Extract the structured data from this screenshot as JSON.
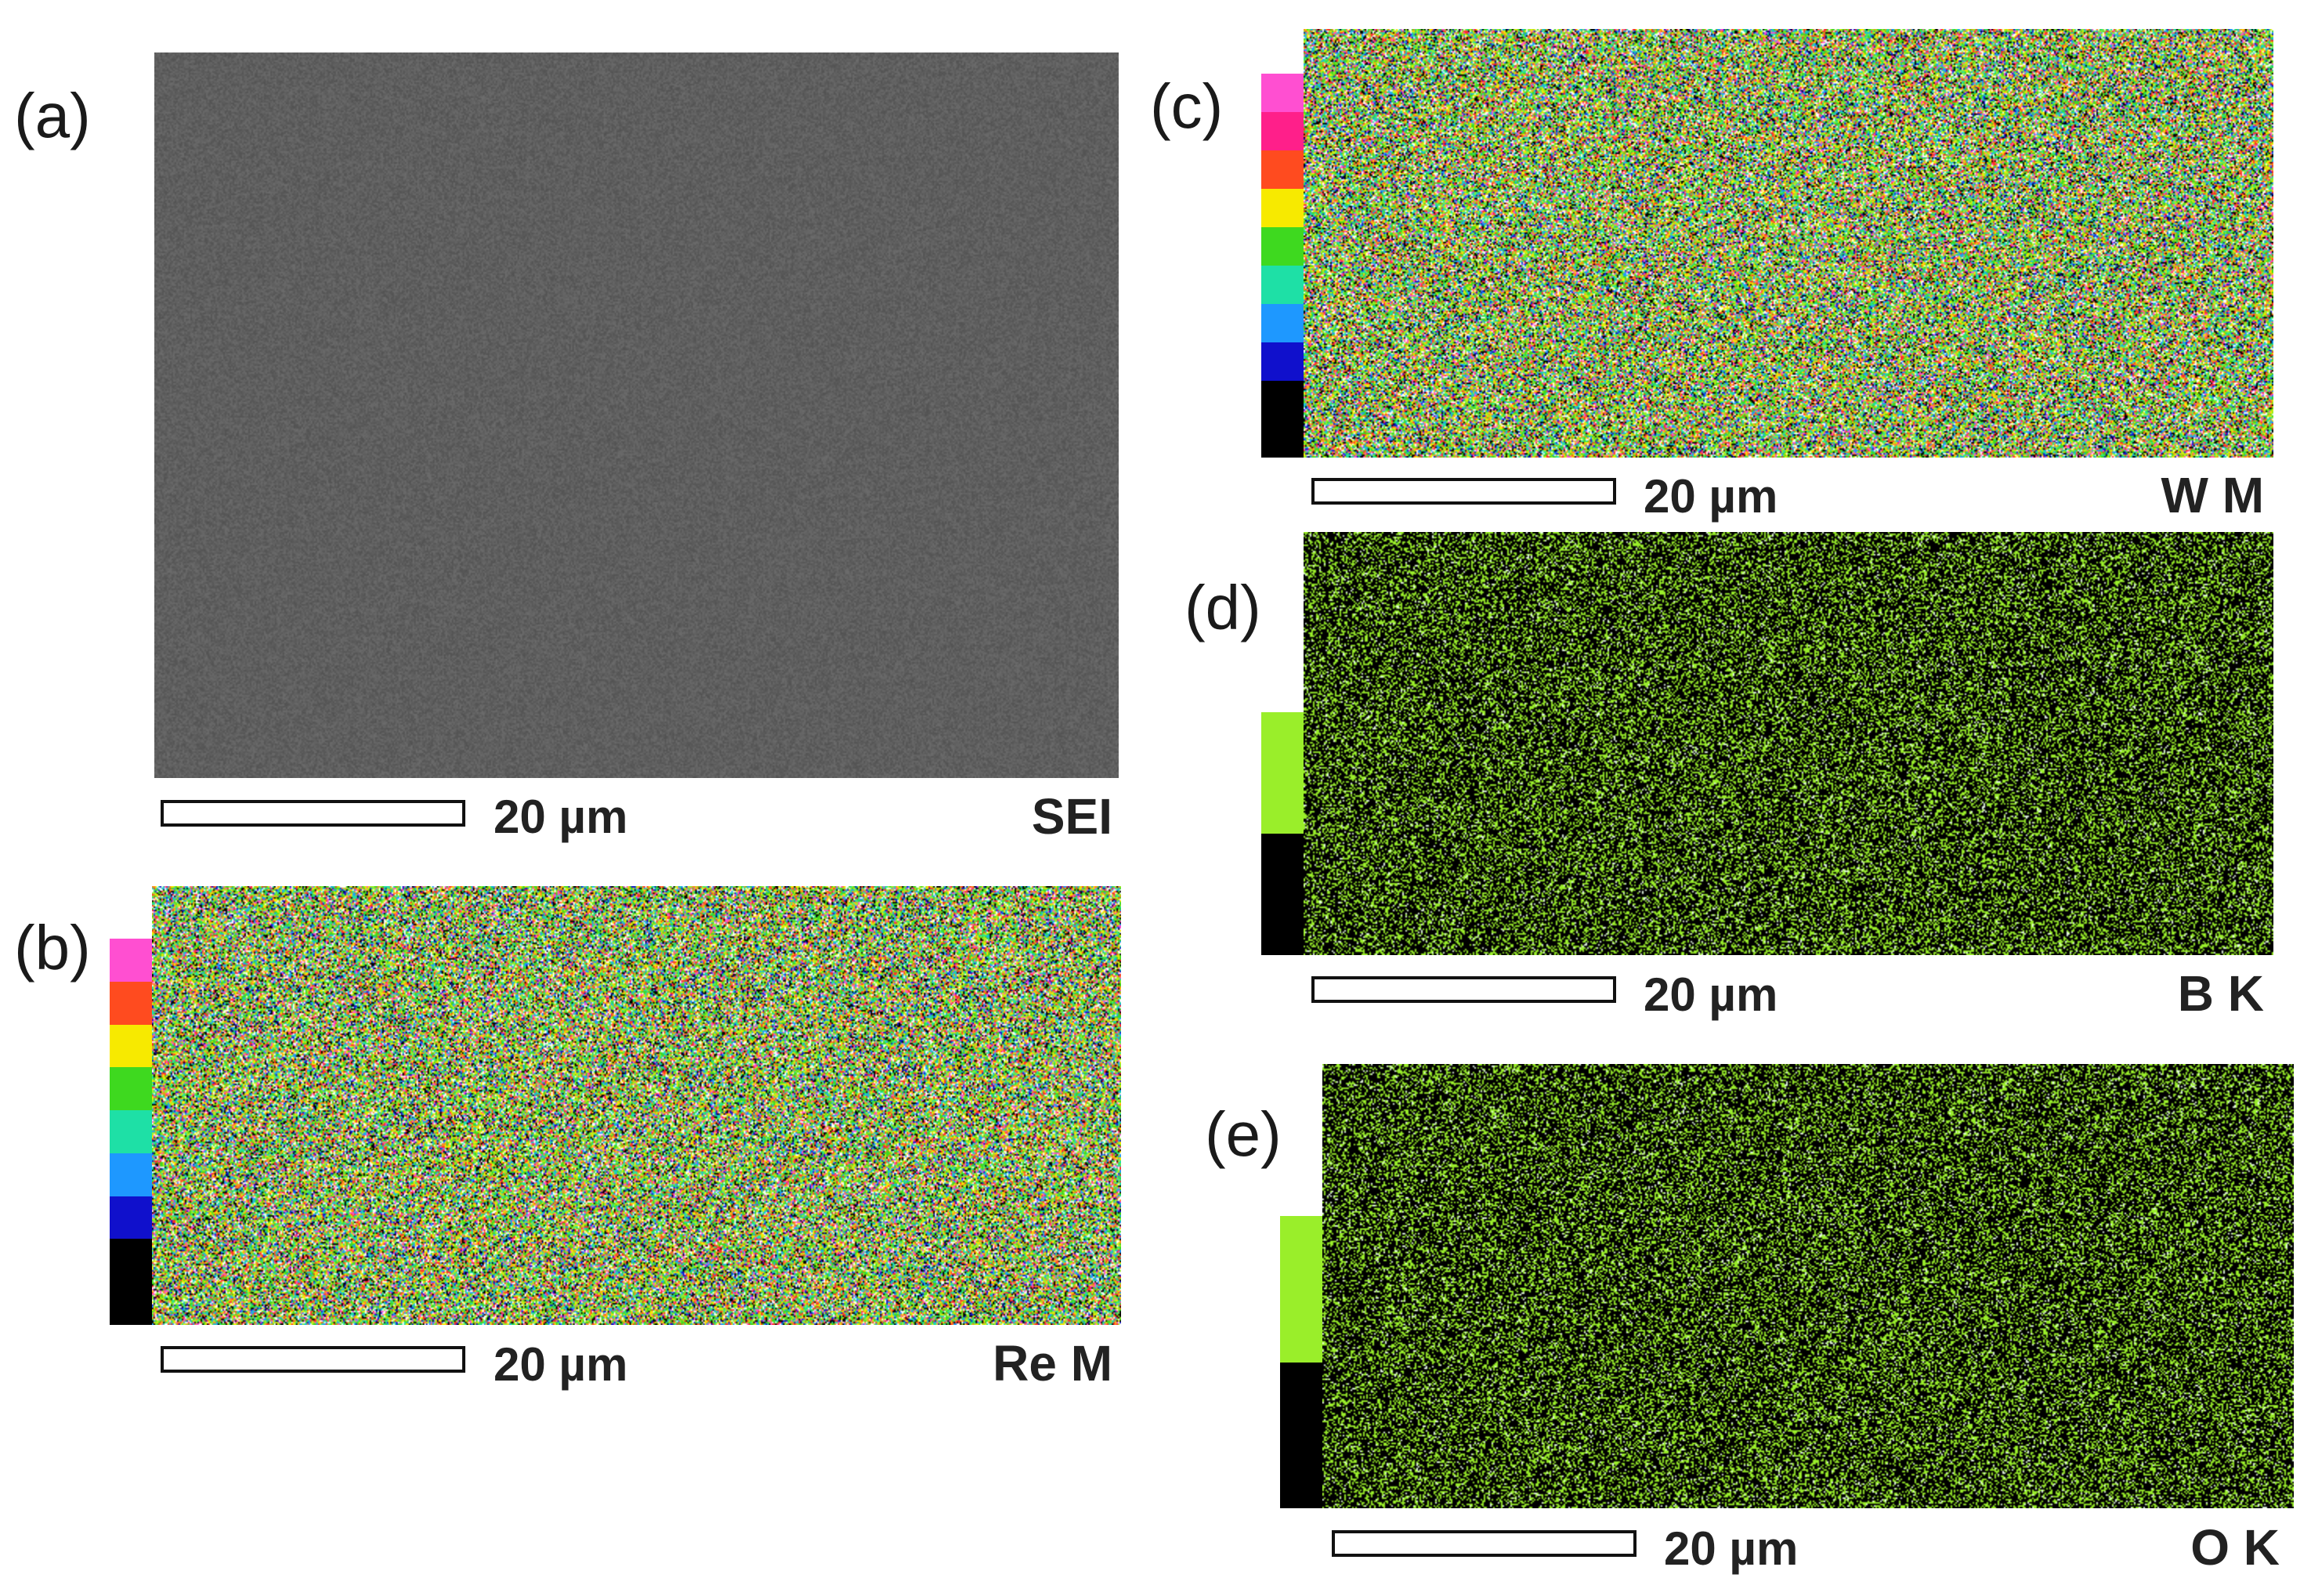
{
  "panels": {
    "a": {
      "label": "(a)",
      "scale": "20 µm",
      "signal": "SEI",
      "kind": "grayscale",
      "base_color": "#5f5f5f"
    },
    "b": {
      "label": "(b)",
      "scale": "20 µm",
      "signal": "Re M",
      "kind": "multicolor",
      "colorbar": [
        "#ff4fd1",
        "#ff4b1f",
        "#f7ea00",
        "#3ed91f",
        "#1ee0a6",
        "#1e98ff",
        "#1010cc",
        "#000000",
        "#000000"
      ]
    },
    "c": {
      "label": "(c)",
      "scale": "20 µm",
      "signal": "W M",
      "kind": "multicolor",
      "colorbar": [
        "#ff4fd1",
        "#ff1f8a",
        "#ff4b1f",
        "#f7ea00",
        "#3ed91f",
        "#1ee0a6",
        "#1e98ff",
        "#1010cc",
        "#000000",
        "#000000"
      ]
    },
    "d": {
      "label": "(d)",
      "scale": "20 µm",
      "signal": "B K",
      "kind": "single",
      "dot_color": "#9aee2a",
      "colorbar": [
        "#9aee2a",
        "#000000"
      ]
    },
    "e": {
      "label": "(e)",
      "scale": "20 µm",
      "signal": "O K",
      "kind": "single",
      "dot_color": "#9aee2a",
      "colorbar": [
        "#9aee2a",
        "#000000"
      ]
    }
  },
  "multicolor_palette": [
    "#ffffff",
    "#ff4fd1",
    "#ff2a2a",
    "#ff8a1f",
    "#f7ea00",
    "#9aee2a",
    "#3ed91f",
    "#1ee0a6",
    "#1e98ff",
    "#1010cc",
    "#000000"
  ]
}
